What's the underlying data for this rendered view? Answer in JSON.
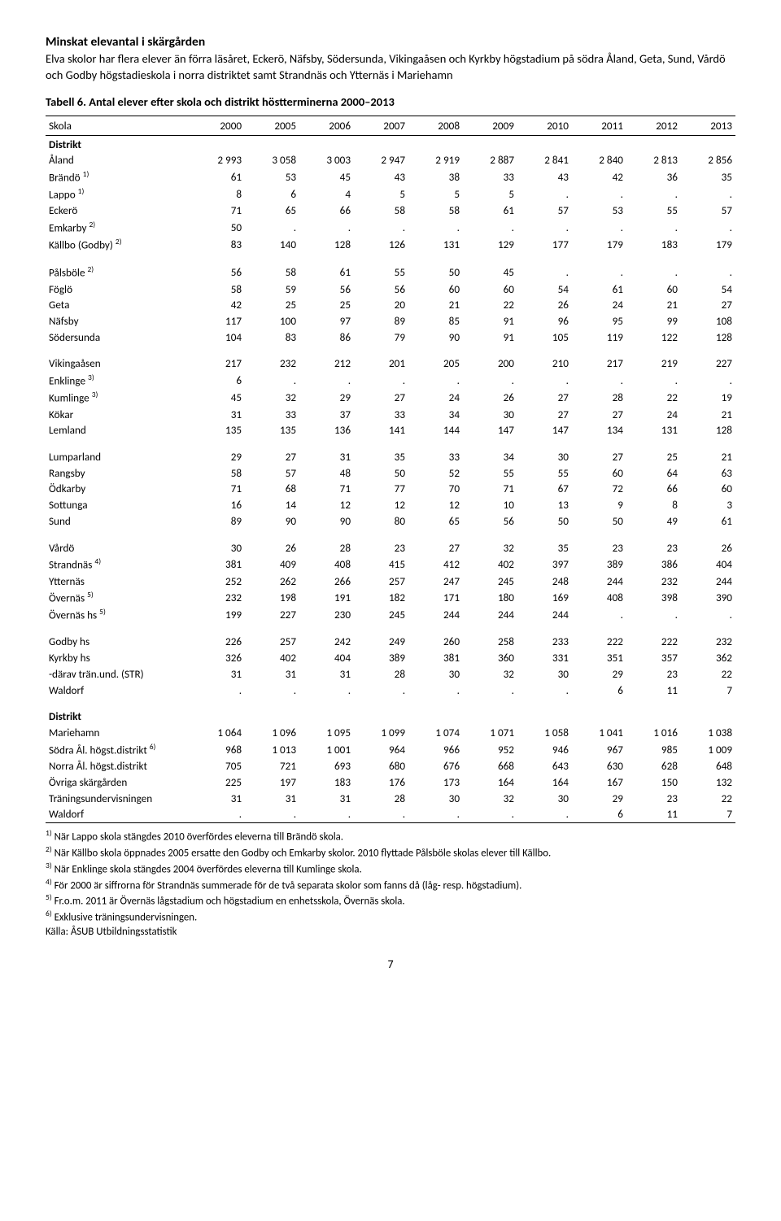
{
  "title": "Minskat elevantal i skärgården",
  "lead": "Elva skolor har flera elever än förra läsåret, Eckerö, Näfsby, Södersunda, Vikingaåsen och Kyrkby högstadium på södra Åland, Geta, Sund, Vårdö och Godby högstadieskola i norra distriktet samt Strandnäs och Ytternäs i Mariehamn",
  "table_caption": "Tabell 6. Antal elever efter skola och distrikt höstterminerna 2000–2013",
  "header": {
    "name": "Skola",
    "years": [
      "2000",
      "2005",
      "2006",
      "2007",
      "2008",
      "2009",
      "2010",
      "2011",
      "2012",
      "2013"
    ]
  },
  "section_labels": {
    "distrikt_top": "Distrikt",
    "distrikt_bottom": "Distrikt"
  },
  "rows_block1": [
    {
      "label": "Åland",
      "sup": "",
      "vals": [
        "2 993",
        "3 058",
        "3 003",
        "2 947",
        "2 919",
        "2 887",
        "2 841",
        "2 840",
        "2 813",
        "2 856"
      ]
    },
    {
      "label": "Brändö",
      "sup": "1)",
      "vals": [
        "61",
        "53",
        "45",
        "43",
        "38",
        "33",
        "43",
        "42",
        "36",
        "35"
      ]
    },
    {
      "label": "Lappo",
      "sup": "1)",
      "vals": [
        "8",
        "6",
        "4",
        "5",
        "5",
        "5",
        ".",
        ".",
        ".",
        "."
      ]
    },
    {
      "label": "Eckerö",
      "sup": "",
      "vals": [
        "71",
        "65",
        "66",
        "58",
        "58",
        "61",
        "57",
        "53",
        "55",
        "57"
      ]
    },
    {
      "label": "Emkarby",
      "sup": "2)",
      "vals": [
        "50",
        ".",
        ".",
        ".",
        ".",
        ".",
        ".",
        ".",
        ".",
        "."
      ]
    },
    {
      "label": "Källbo (Godby)",
      "sup": "2)",
      "vals": [
        "83",
        "140",
        "128",
        "126",
        "131",
        "129",
        "177",
        "179",
        "183",
        "179"
      ]
    }
  ],
  "rows_block2": [
    {
      "label": "Pålsböle",
      "sup": "2)",
      "vals": [
        "56",
        "58",
        "61",
        "55",
        "50",
        "45",
        ".",
        ".",
        ".",
        "."
      ]
    },
    {
      "label": "Föglö",
      "sup": "",
      "vals": [
        "58",
        "59",
        "56",
        "56",
        "60",
        "60",
        "54",
        "61",
        "60",
        "54"
      ]
    },
    {
      "label": "Geta",
      "sup": "",
      "vals": [
        "42",
        "25",
        "25",
        "20",
        "21",
        "22",
        "26",
        "24",
        "21",
        "27"
      ]
    },
    {
      "label": "Näfsby",
      "sup": "",
      "vals": [
        "117",
        "100",
        "97",
        "89",
        "85",
        "91",
        "96",
        "95",
        "99",
        "108"
      ]
    },
    {
      "label": "Södersunda",
      "sup": "",
      "vals": [
        "104",
        "83",
        "86",
        "79",
        "90",
        "91",
        "105",
        "119",
        "122",
        "128"
      ]
    }
  ],
  "rows_block3": [
    {
      "label": "Vikingaåsen",
      "sup": "",
      "vals": [
        "217",
        "232",
        "212",
        "201",
        "205",
        "200",
        "210",
        "217",
        "219",
        "227"
      ]
    },
    {
      "label": "Enklinge",
      "sup": "3)",
      "vals": [
        "6",
        ".",
        ".",
        ".",
        ".",
        ".",
        ".",
        ".",
        ".",
        "."
      ]
    },
    {
      "label": "Kumlinge",
      "sup": "3)",
      "vals": [
        "45",
        "32",
        "29",
        "27",
        "24",
        "26",
        "27",
        "28",
        "22",
        "19"
      ]
    },
    {
      "label": "Kökar",
      "sup": "",
      "vals": [
        "31",
        "33",
        "37",
        "33",
        "34",
        "30",
        "27",
        "27",
        "24",
        "21"
      ]
    },
    {
      "label": "Lemland",
      "sup": "",
      "vals": [
        "135",
        "135",
        "136",
        "141",
        "144",
        "147",
        "147",
        "134",
        "131",
        "128"
      ]
    }
  ],
  "rows_block4": [
    {
      "label": "Lumparland",
      "sup": "",
      "vals": [
        "29",
        "27",
        "31",
        "35",
        "33",
        "34",
        "30",
        "27",
        "25",
        "21"
      ]
    },
    {
      "label": "Rangsby",
      "sup": "",
      "vals": [
        "58",
        "57",
        "48",
        "50",
        "52",
        "55",
        "55",
        "60",
        "64",
        "63"
      ]
    },
    {
      "label": "Ödkarby",
      "sup": "",
      "vals": [
        "71",
        "68",
        "71",
        "77",
        "70",
        "71",
        "67",
        "72",
        "66",
        "60"
      ]
    },
    {
      "label": "Sottunga",
      "sup": "",
      "vals": [
        "16",
        "14",
        "12",
        "12",
        "12",
        "10",
        "13",
        "9",
        "8",
        "3"
      ]
    },
    {
      "label": "Sund",
      "sup": "",
      "vals": [
        "89",
        "90",
        "90",
        "80",
        "65",
        "56",
        "50",
        "50",
        "49",
        "61"
      ]
    }
  ],
  "rows_block5": [
    {
      "label": "Vårdö",
      "sup": "",
      "vals": [
        "30",
        "26",
        "28",
        "23",
        "27",
        "32",
        "35",
        "23",
        "23",
        "26"
      ]
    },
    {
      "label": "Strandnäs",
      "sup": "4)",
      "vals": [
        "381",
        "409",
        "408",
        "415",
        "412",
        "402",
        "397",
        "389",
        "386",
        "404"
      ]
    },
    {
      "label": "Ytternäs",
      "sup": "",
      "vals": [
        "252",
        "262",
        "266",
        "257",
        "247",
        "245",
        "248",
        "244",
        "232",
        "244"
      ]
    },
    {
      "label": "Övernäs",
      "sup": "5)",
      "vals": [
        "232",
        "198",
        "191",
        "182",
        "171",
        "180",
        "169",
        "408",
        "398",
        "390"
      ]
    },
    {
      "label": "Övernäs hs",
      "sup": "5)",
      "vals": [
        "199",
        "227",
        "230",
        "245",
        "244",
        "244",
        "244",
        ".",
        ".",
        "."
      ]
    }
  ],
  "rows_block6": [
    {
      "label": "Godby hs",
      "sup": "",
      "vals": [
        "226",
        "257",
        "242",
        "249",
        "260",
        "258",
        "233",
        "222",
        "222",
        "232"
      ]
    },
    {
      "label": "Kyrkby hs",
      "sup": "",
      "vals": [
        "326",
        "402",
        "404",
        "389",
        "381",
        "360",
        "331",
        "351",
        "357",
        "362"
      ]
    },
    {
      "label": "-därav trän.und. (STR)",
      "sup": "",
      "vals": [
        "31",
        "31",
        "31",
        "28",
        "30",
        "32",
        "30",
        "29",
        "23",
        "22"
      ]
    },
    {
      "label": "Waldorf",
      "sup": "",
      "vals": [
        ".",
        ".",
        ".",
        ".",
        ".",
        ".",
        ".",
        "6",
        "11",
        "7"
      ]
    }
  ],
  "rows_block7": [
    {
      "label": "Mariehamn",
      "sup": "",
      "vals": [
        "1 064",
        "1 096",
        "1 095",
        "1 099",
        "1 074",
        "1 071",
        "1 058",
        "1 041",
        "1 016",
        "1 038"
      ]
    },
    {
      "label": "Södra Ål. högst.distrikt",
      "sup": "6)",
      "vals": [
        "968",
        "1 013",
        "1 001",
        "964",
        "966",
        "952",
        "946",
        "967",
        "985",
        "1 009"
      ]
    },
    {
      "label": "Norra Ål. högst.distrikt",
      "sup": "",
      "vals": [
        "705",
        "721",
        "693",
        "680",
        "676",
        "668",
        "643",
        "630",
        "628",
        "648"
      ]
    },
    {
      "label": "Övriga skärgården",
      "sup": "",
      "vals": [
        "225",
        "197",
        "183",
        "176",
        "173",
        "164",
        "164",
        "167",
        "150",
        "132"
      ]
    },
    {
      "label": "Träningsundervisningen",
      "sup": "",
      "vals": [
        "31",
        "31",
        "31",
        "28",
        "30",
        "32",
        "30",
        "29",
        "23",
        "22"
      ]
    },
    {
      "label": "Waldorf",
      "sup": "",
      "vals": [
        ".",
        ".",
        ".",
        ".",
        ".",
        ".",
        ".",
        "6",
        "11",
        "7"
      ]
    }
  ],
  "footnotes": [
    {
      "sup": "1)",
      "text": " När Lappo skola stängdes 2010 överfördes eleverna till Brändö skola."
    },
    {
      "sup": "2)",
      "text": " När Källbo skola öppnades 2005 ersatte den Godby och Emkarby skolor. 2010 flyttade Pålsböle skolas elever till Källbo."
    },
    {
      "sup": "3)",
      "text": " När Enklinge skola stängdes 2004 överfördes eleverna till Kumlinge skola."
    },
    {
      "sup": "4)",
      "text": " För 2000 är siffrorna för Strandnäs summerade för de två separata skolor som fanns då (låg- resp. högstadium)."
    },
    {
      "sup": "5)",
      "text": " Fr.o.m. 2011 är Övernäs lågstadium och högstadium en enhetsskola, Övernäs skola."
    },
    {
      "sup": "6)",
      "text": " Exklusive träningsundervisningen."
    }
  ],
  "source": "Källa: ÅSUB Utbildningsstatistik",
  "page_number": "7"
}
